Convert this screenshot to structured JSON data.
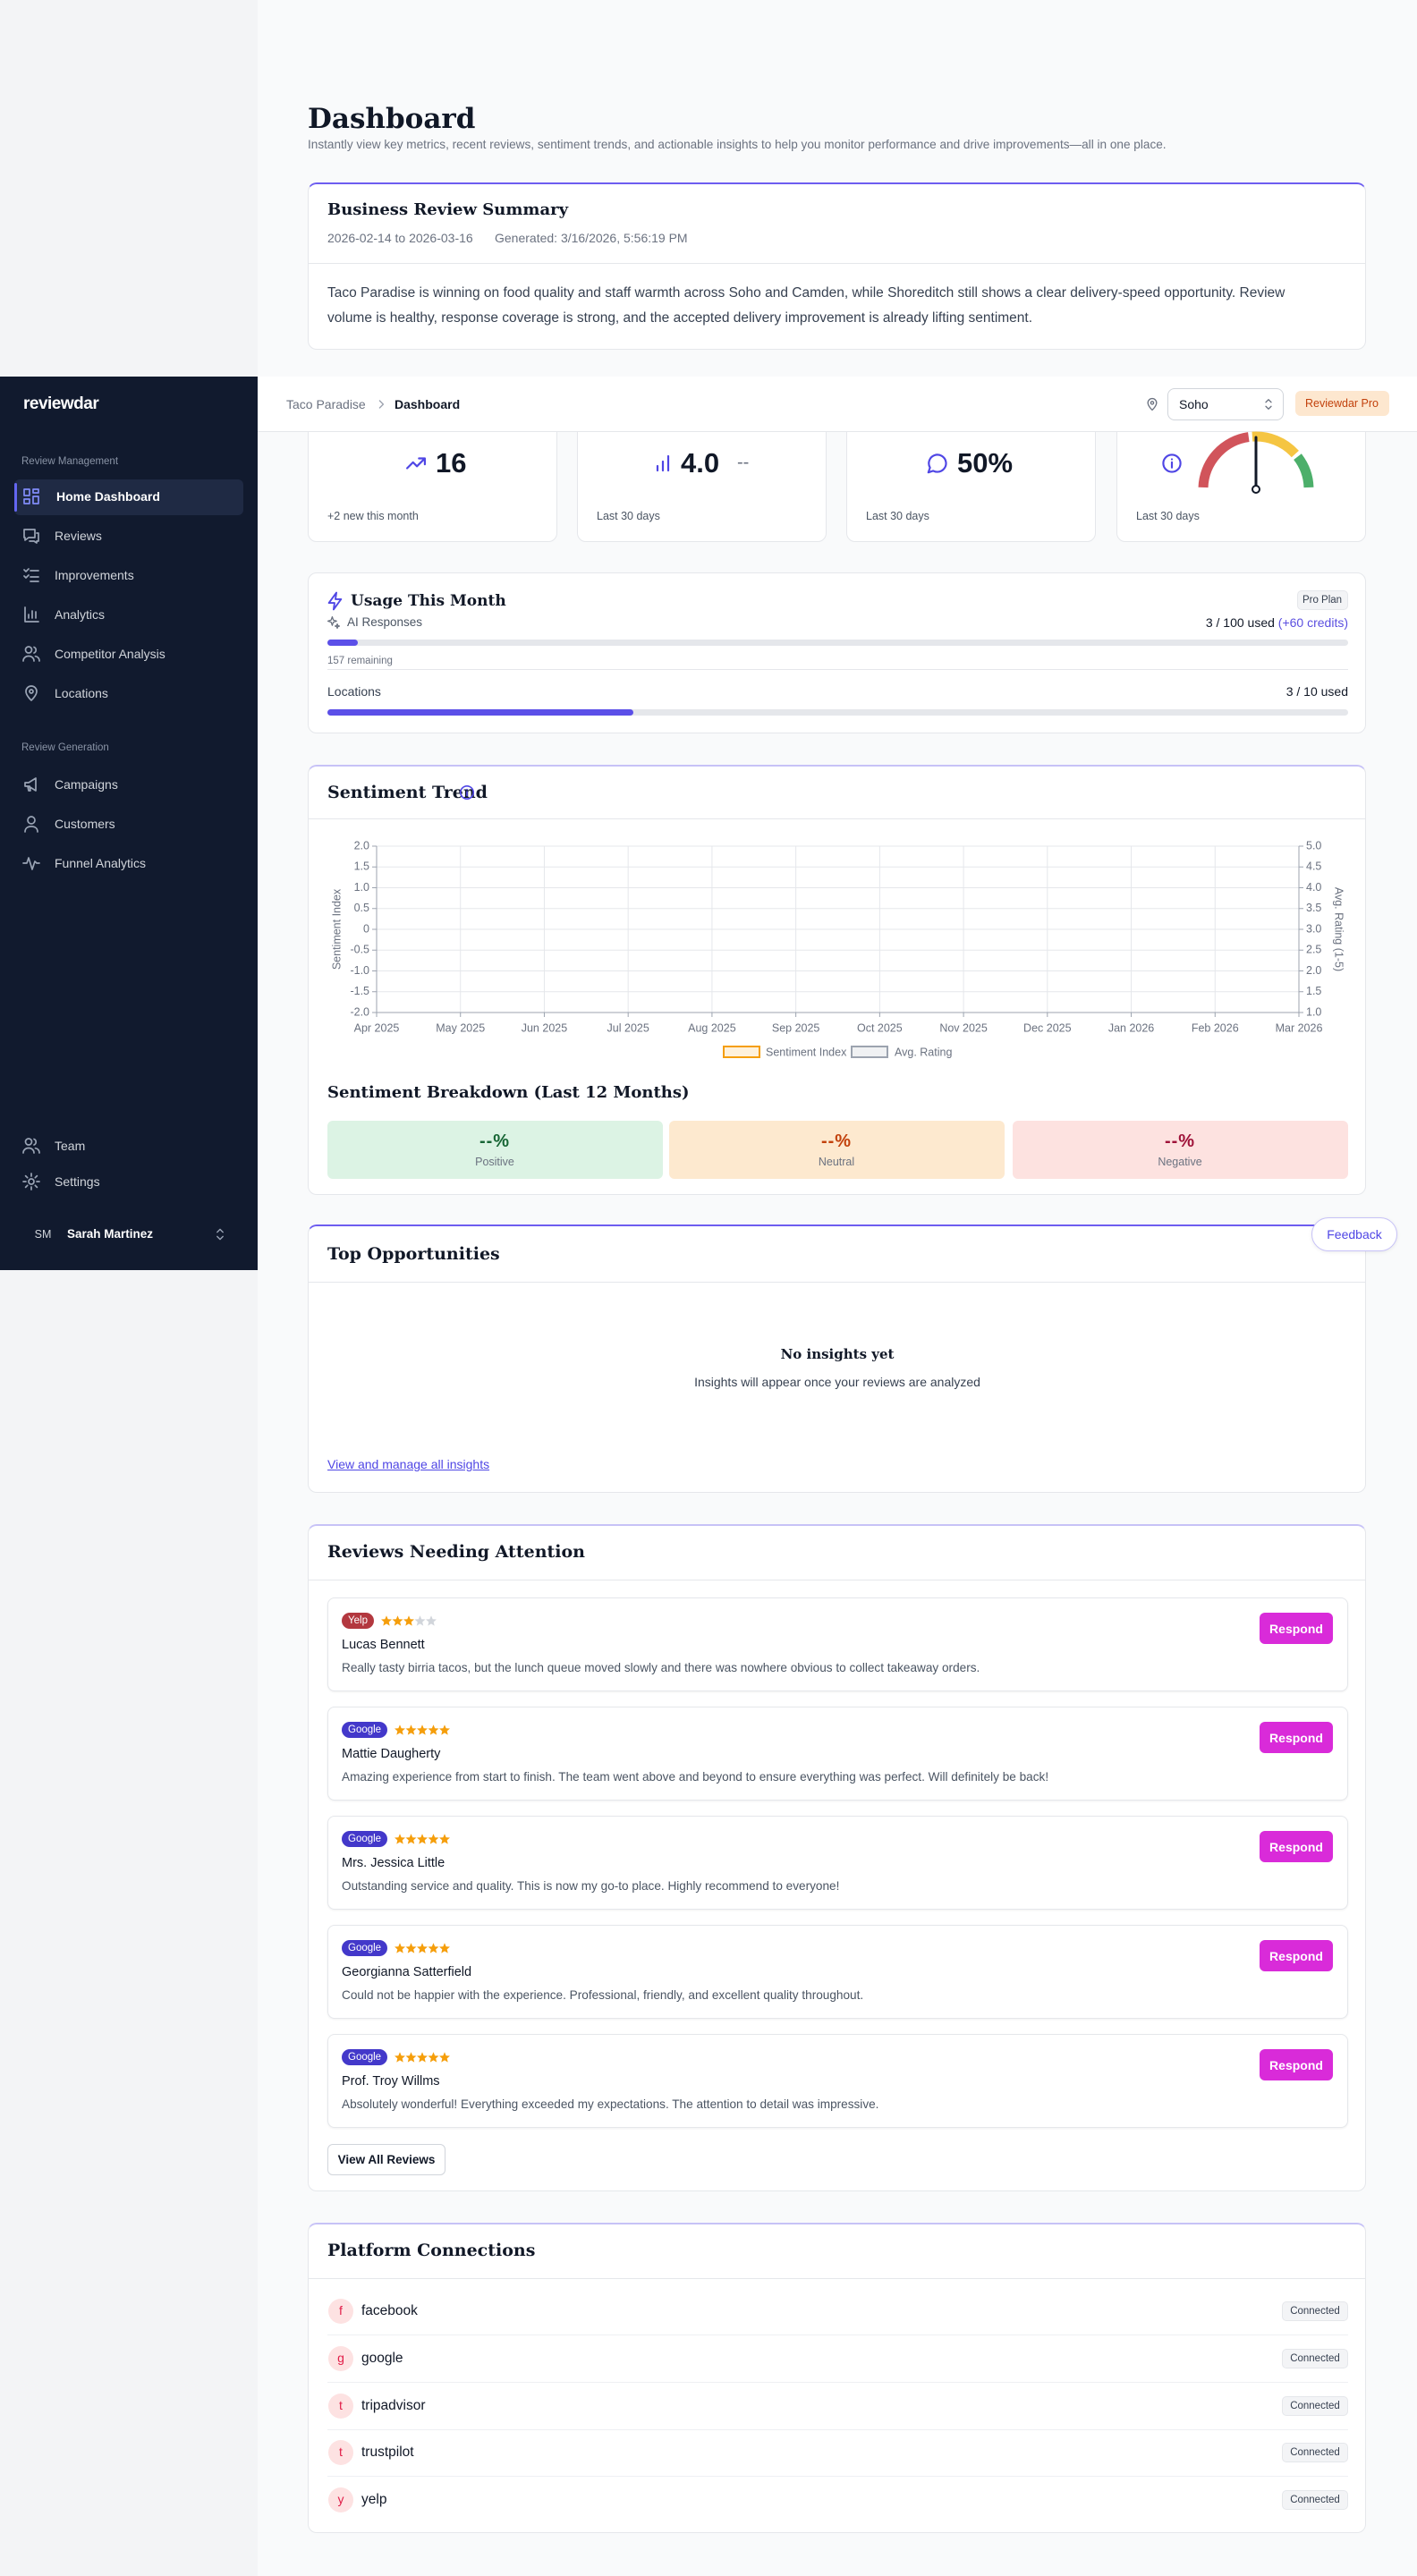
{
  "sidebar": {
    "logo": "reviewdar",
    "sections": [
      {
        "title": "Review Management",
        "items": [
          "Home Dashboard",
          "Reviews",
          "Improvements",
          "Analytics",
          "Competitor Analysis",
          "Locations"
        ]
      },
      {
        "title": "Review Generation",
        "items": [
          "Campaigns",
          "Customers",
          "Funnel Analytics"
        ]
      }
    ],
    "bottom_items": [
      "Team",
      "Settings"
    ],
    "user": {
      "initials": "SM",
      "name": "Sarah Martinez"
    }
  },
  "topbar": {
    "breadcrumb": [
      "Taco Paradise",
      "Dashboard"
    ],
    "location": "Soho",
    "plan_badge": "Reviewdar Pro"
  },
  "header": {
    "title": "Dashboard",
    "subtitle": "Instantly view key metrics, recent reviews, sentiment trends, and actionable insights to help you monitor performance and drive improvements—all in one place."
  },
  "summary": {
    "title": "Business Review Summary",
    "period": "2026-02-14 to 2026-03-16",
    "generated": "Generated: 3/16/2026, 5:56:19 PM",
    "text": "Taco Paradise is winning on food quality and staff warmth across Soho and Camden, while Shoreditch still shows a clear delivery-speed opportunity. Review volume is healthy, response coverage is strong, and the accepted delivery improvement is already lifting sentiment."
  },
  "stats": [
    {
      "value": "16",
      "note": "+2 new this month"
    },
    {
      "value": "4.0",
      "secondary": "--",
      "note": "Last 30 days"
    },
    {
      "value": "50%",
      "note": "Last 30 days"
    },
    {
      "note": "Last 30 days"
    }
  ],
  "usage": {
    "title": "Usage This Month",
    "plan": "Pro Plan",
    "ai": {
      "label": "AI Responses",
      "count": "3 / 100 used",
      "credits": "(+60 credits)",
      "used": 3,
      "limit": 100,
      "remaining": "157 remaining"
    },
    "locations": {
      "label": "Locations",
      "count": "3 / 10 used",
      "used": 3,
      "limit": 10
    }
  },
  "chart_data": {
    "type": "line",
    "title": "Sentiment Trend",
    "ylabel": "Sentiment Index",
    "y2label": "Avg. Rating (1-5)",
    "categories": [
      "Apr 2025",
      "May 2025",
      "Jun 2025",
      "Jul 2025",
      "Aug 2025",
      "Sep 2025",
      "Oct 2025",
      "Nov 2025",
      "Dec 2025",
      "Jan 2026",
      "Feb 2026",
      "Mar 2026"
    ],
    "series": [
      {
        "name": "Sentiment Index",
        "color": "#f59e0b",
        "values": [
          null,
          null,
          null,
          null,
          null,
          null,
          null,
          null,
          null,
          null,
          null,
          null
        ]
      },
      {
        "name": "Avg. Rating",
        "color": "#9ca3af",
        "axis": "y2",
        "values": [
          null,
          null,
          null,
          null,
          null,
          null,
          null,
          null,
          null,
          null,
          null,
          null
        ]
      }
    ],
    "ylim": [
      -2,
      2
    ],
    "yticks": [
      {
        "value": 2,
        "label": "2.0"
      },
      {
        "value": 1.5,
        "label": "1.5"
      },
      {
        "value": 1,
        "label": "1.0"
      },
      {
        "value": 0.5,
        "label": "0.5"
      },
      0,
      {
        "value": -0.5,
        "label": "-0.5"
      },
      {
        "value": -1,
        "label": "-1.0"
      },
      {
        "value": -1.5,
        "label": "-1.5"
      },
      {
        "value": -2,
        "label": "-2.0"
      }
    ],
    "y2lim": [
      1,
      5
    ],
    "y2ticks": [
      {
        "value": 5,
        "label": "5.0"
      },
      {
        "value": 4.5,
        "label": "4.5"
      },
      {
        "value": 4,
        "label": "4.0"
      },
      {
        "value": 3.5,
        "label": "3.5"
      },
      {
        "value": 3,
        "label": "3.0"
      },
      {
        "value": 2.5,
        "label": "2.5"
      },
      {
        "value": 2,
        "label": "2.0"
      },
      {
        "value": 1.5,
        "label": "1.5"
      },
      {
        "value": 1,
        "label": "1.0"
      }
    ],
    "grid": true
  },
  "breakdown": {
    "title": "Sentiment Breakdown (Last 12 Months)",
    "items": [
      {
        "value": "--%",
        "label": "Positive",
        "color": "#166534",
        "bg": "#dcf3e4"
      },
      {
        "value": "--%",
        "label": "Neutral",
        "color": "#c2410c",
        "bg": "#fde9cf"
      },
      {
        "value": "--%",
        "label": "Negative",
        "color": "#9f1239",
        "bg": "#fde2e0"
      }
    ]
  },
  "opportunities": {
    "title": "Top Opportunities",
    "empty_title": "No insights yet",
    "empty_text": "Insights will appear once your reviews are analyzed",
    "link": "View and manage all insights"
  },
  "feedback": "Feedback",
  "reviews": {
    "title": "Reviews Needing Attention",
    "button": "Respond",
    "view_all": "View All Reviews",
    "items": [
      {
        "platform": "Yelp",
        "badge_color": "#b3383f",
        "rating": 3,
        "name": "Lucas Bennett",
        "text": "Really tasty birria tacos, but the lunch queue moved slowly and there was nowhere obvious to collect takeaway orders."
      },
      {
        "platform": "Google",
        "badge_color": "#4338ca",
        "rating": 5,
        "name": "Mattie Daugherty",
        "text": "Amazing experience from start to finish. The team went above and beyond to ensure everything was perfect. Will definitely be back!"
      },
      {
        "platform": "Google",
        "badge_color": "#4338ca",
        "rating": 5,
        "name": "Mrs. Jessica Little",
        "text": "Outstanding service and quality. This is now my go-to place. Highly recommend to everyone!"
      },
      {
        "platform": "Google",
        "badge_color": "#4338ca",
        "rating": 5,
        "name": "Georgianna Satterfield",
        "text": "Could not be happier with the experience. Professional, friendly, and excellent quality throughout."
      },
      {
        "platform": "Google",
        "badge_color": "#4338ca",
        "rating": 5,
        "name": "Prof. Troy Willms",
        "text": "Absolutely wonderful! Everything exceeded my expectations. The attention to detail was impressive."
      }
    ]
  },
  "platforms": {
    "title": "Platform Connections",
    "items": [
      {
        "initial": "f",
        "name": "facebook",
        "status": "Connected"
      },
      {
        "initial": "g",
        "name": "google",
        "status": "Connected"
      },
      {
        "initial": "t",
        "name": "tripadvisor",
        "status": "Connected"
      },
      {
        "initial": "t",
        "name": "trustpilot",
        "status": "Connected"
      },
      {
        "initial": "y",
        "name": "yelp",
        "status": "Connected"
      }
    ]
  }
}
